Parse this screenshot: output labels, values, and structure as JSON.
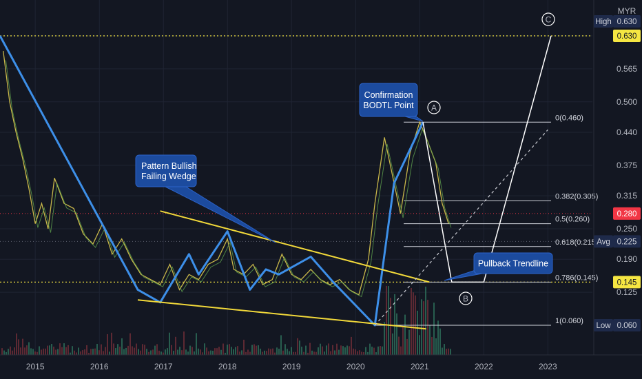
{
  "chart_data": {
    "type": "line",
    "currency": "MYR",
    "x_ticks": [
      "2015",
      "2016",
      "2017",
      "2018",
      "2019",
      "2020",
      "2021",
      "2022",
      "2023"
    ],
    "y_ticks": [
      "0.630",
      "0.565",
      "0.500",
      "0.440",
      "0.375",
      "0.315",
      "0.250",
      "0.190",
      "0.125"
    ],
    "ylim": [
      0.03,
      0.66
    ],
    "price_tags": [
      {
        "label": "High",
        "value": "0.630",
        "price": 0.63,
        "style": "navy"
      },
      {
        "label": "",
        "value": "0.630",
        "price": 0.63,
        "style": "yellow"
      },
      {
        "label": "",
        "value": "0.280",
        "price": 0.28,
        "style": "red"
      },
      {
        "label": "Avg",
        "value": "0.225",
        "price": 0.225,
        "style": "navy"
      },
      {
        "label": "",
        "value": "0.145",
        "price": 0.145,
        "style": "yellow"
      },
      {
        "label": "Low",
        "value": "0.060",
        "price": 0.06,
        "style": "navy"
      }
    ],
    "fib_levels": [
      {
        "label": "0(0.460)",
        "price": 0.46
      },
      {
        "label": "0.382(0.305)",
        "price": 0.305
      },
      {
        "label": "0.5(0.260)",
        "price": 0.26
      },
      {
        "label": "0.618(0.215)",
        "price": 0.215
      },
      {
        "label": "0.786(0.145)",
        "price": 0.145
      },
      {
        "label": "1(0.060)",
        "price": 0.06
      }
    ],
    "callouts": [
      {
        "lines": [
          "Pattern Bullish",
          "Failing Wedge"
        ]
      },
      {
        "lines": [
          "Confirmation",
          "BODTL Point"
        ]
      },
      {
        "lines": [
          "Pullback Trendline"
        ]
      }
    ],
    "wave_labels": [
      "A",
      "B",
      "C"
    ],
    "price_series": {
      "name": "",
      "x": [
        2014.5,
        2014.6,
        2014.7,
        2014.8,
        2014.9,
        2015.0,
        2015.1,
        2015.2,
        2015.3,
        2015.45,
        2015.6,
        2015.75,
        2015.9,
        2016.05,
        2016.2,
        2016.35,
        2016.5,
        2016.65,
        2016.8,
        2016.95,
        2017.1,
        2017.25,
        2017.4,
        2017.55,
        2017.7,
        2017.85,
        2018.0,
        2018.1,
        2018.25,
        2018.4,
        2018.55,
        2018.7,
        2018.85,
        2019.0,
        2019.15,
        2019.3,
        2019.45,
        2019.6,
        2019.75,
        2019.9,
        2020.05,
        2020.2,
        2020.3,
        2020.45,
        2020.6,
        2020.7,
        2020.85,
        2021.0,
        2021.1,
        2021.25,
        2021.35,
        2021.45
      ],
      "y": [
        0.6,
        0.5,
        0.44,
        0.39,
        0.33,
        0.26,
        0.3,
        0.25,
        0.35,
        0.3,
        0.29,
        0.24,
        0.22,
        0.26,
        0.2,
        0.23,
        0.19,
        0.16,
        0.15,
        0.14,
        0.18,
        0.13,
        0.16,
        0.15,
        0.18,
        0.19,
        0.23,
        0.17,
        0.16,
        0.18,
        0.14,
        0.15,
        0.2,
        0.16,
        0.15,
        0.17,
        0.15,
        0.14,
        0.15,
        0.13,
        0.12,
        0.19,
        0.3,
        0.43,
        0.34,
        0.28,
        0.4,
        0.46,
        0.43,
        0.38,
        0.3,
        0.26
      ]
    },
    "pattern_lines": [
      {
        "name": "downtrend",
        "points": [
          [
            2014.45,
            0.63
          ],
          [
            2016.6,
            0.13
          ],
          [
            2016.95,
            0.105
          ],
          [
            2017.4,
            0.2
          ],
          [
            2017.55,
            0.16
          ],
          [
            2018.0,
            0.245
          ],
          [
            2018.35,
            0.13
          ],
          [
            2018.6,
            0.17
          ],
          [
            2018.8,
            0.16
          ],
          [
            2019.3,
            0.195
          ],
          [
            2019.65,
            0.145
          ],
          [
            2020.3,
            0.06
          ],
          [
            2020.6,
            0.34
          ],
          [
            2021.05,
            0.46
          ]
        ]
      },
      {
        "name": "wedge-upper",
        "points": [
          [
            2016.95,
            0.285
          ],
          [
            2021.15,
            0.145
          ]
        ]
      },
      {
        "name": "wedge-lower",
        "points": [
          [
            2016.6,
            0.11
          ],
          [
            2021.1,
            0.053
          ]
        ]
      },
      {
        "name": "abc-path",
        "points": [
          [
            2021.05,
            0.46
          ],
          [
            2021.5,
            0.145
          ],
          [
            2022.0,
            0.145
          ],
          [
            2023.05,
            0.63
          ]
        ]
      },
      {
        "name": "dashed-diagonal",
        "points": [
          [
            2020.3,
            0.06
          ],
          [
            2023.0,
            0.445
          ]
        ]
      }
    ]
  }
}
